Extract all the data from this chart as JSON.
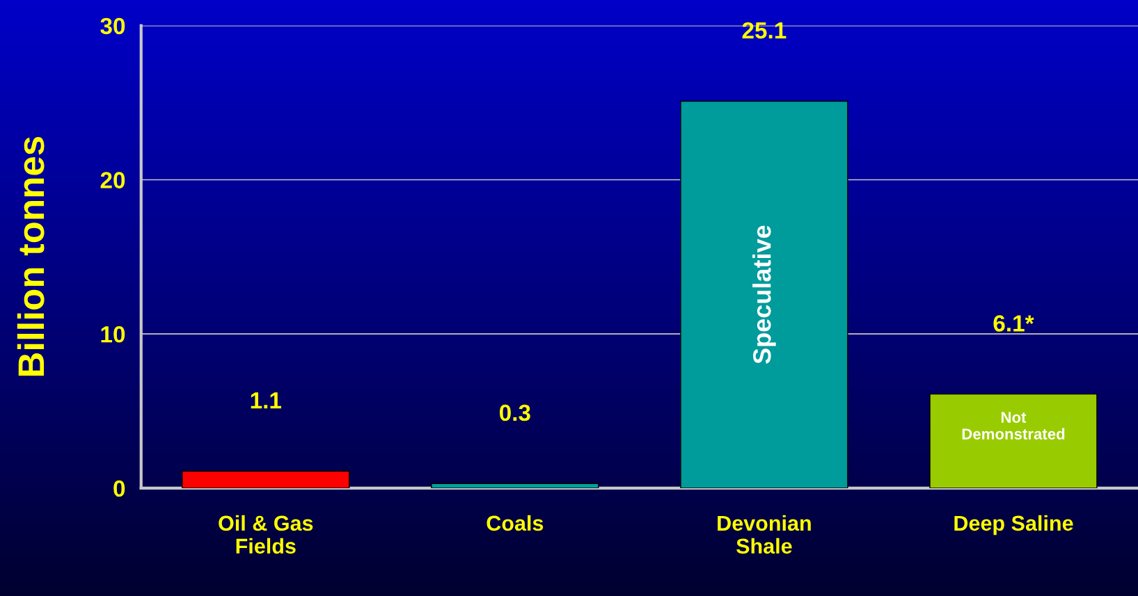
{
  "chart_data": {
    "type": "bar",
    "ylabel": "Billion tonnes",
    "categories": [
      "Oil & Gas\nFields",
      "Coals",
      "Devonian\nShale",
      "Deep Saline"
    ],
    "values": [
      1.1,
      0.3,
      25.1,
      6.1
    ],
    "colors": [
      "#ff0000",
      "#00a0a0",
      "#009b9b",
      "#99cc00"
    ],
    "value_labels": [
      "1.1",
      "0.3",
      "25.1",
      "6.1*"
    ],
    "annotations": [
      "Speculative",
      "Not\nDemonstrated"
    ],
    "ylim": [
      0,
      30
    ],
    "yticks": [
      0,
      10,
      20,
      30
    ],
    "grid": "y"
  }
}
